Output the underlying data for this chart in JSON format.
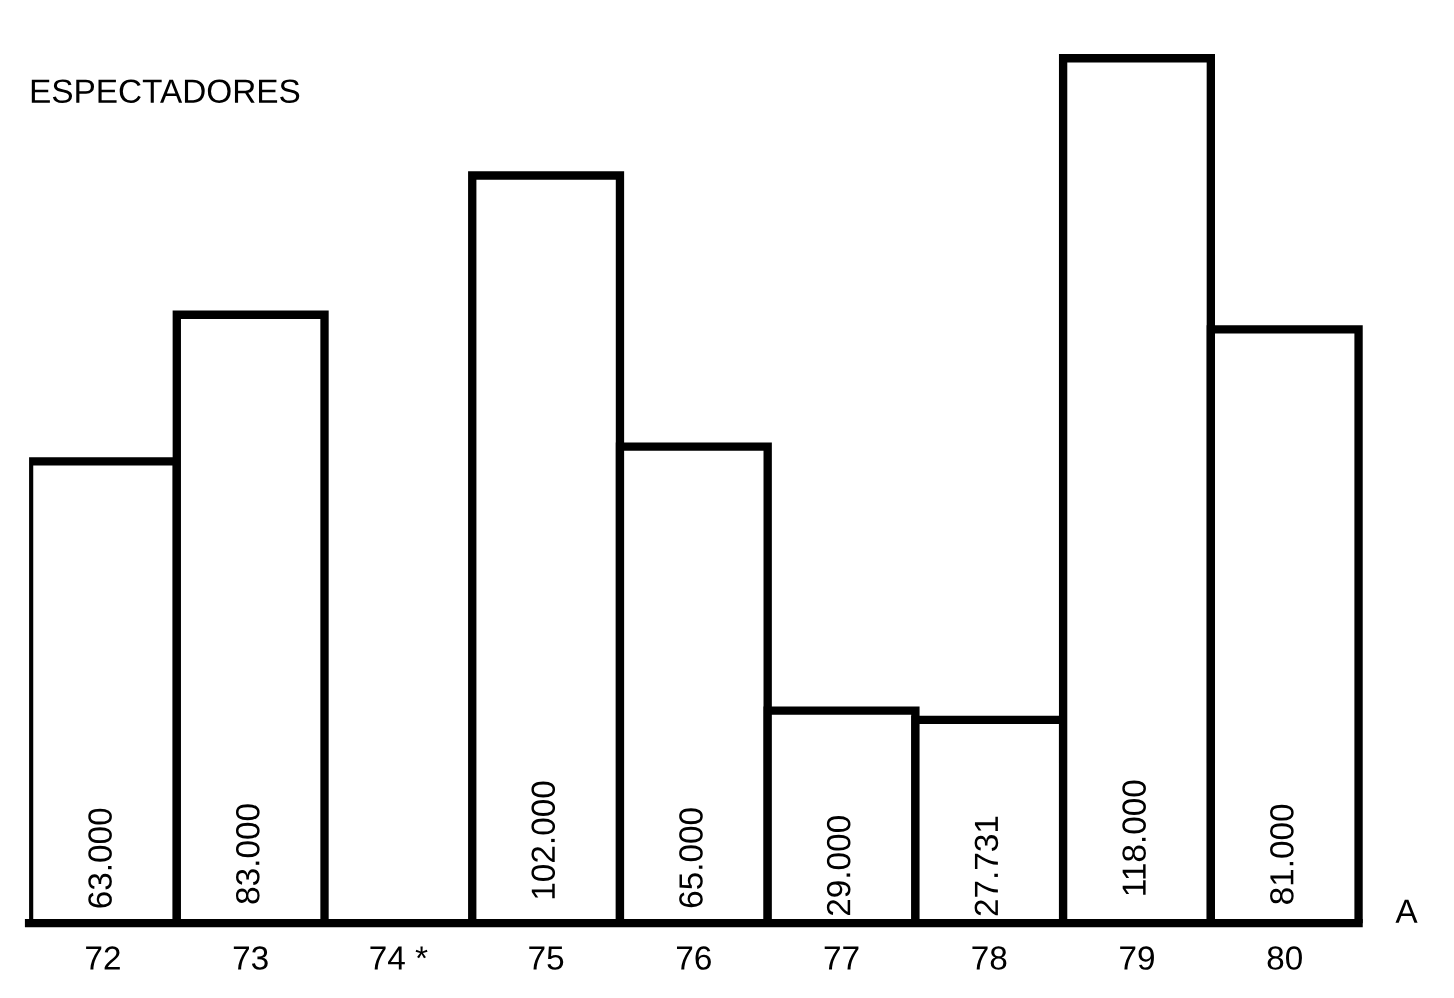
{
  "chart_data": {
    "type": "bar",
    "ylabel": "ESPECTADORES",
    "xlabel": "A",
    "categories": [
      "72",
      "73",
      "74 *",
      "75",
      "76",
      "77",
      "78",
      "79",
      "80"
    ],
    "values": [
      63000,
      83000,
      null,
      102000,
      65000,
      29000,
      27731,
      118000,
      81000
    ],
    "value_labels": [
      "63.000",
      "83.000",
      null,
      "102.000",
      "65.000",
      "29.000",
      "27.731",
      "118.000",
      "81.000"
    ],
    "color": "#ffffff",
    "grid": false,
    "legend": false
  }
}
